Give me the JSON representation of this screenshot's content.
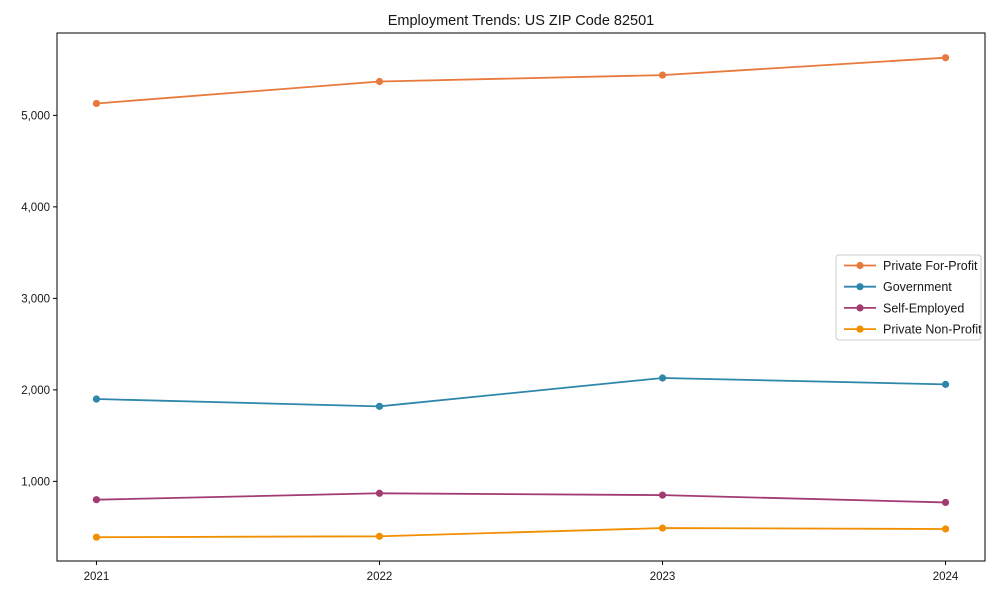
{
  "chart_data": {
    "type": "line",
    "title": "Employment Trends: US ZIP Code 82501",
    "categories": [
      "2021",
      "2022",
      "2023",
      "2024"
    ],
    "series": [
      {
        "name": "Private For-Profit",
        "color": "#E8793D",
        "values": [
          5130,
          5370,
          5440,
          5630
        ]
      },
      {
        "name": "Government",
        "color": "#2E86AB",
        "values": [
          1900,
          1820,
          2130,
          2060
        ]
      },
      {
        "name": "Self-Employed",
        "color": "#A23B72",
        "values": [
          800,
          870,
          850,
          770
        ]
      },
      {
        "name": "Private Non-Profit",
        "color": "#F18F01",
        "values": [
          390,
          400,
          490,
          480
        ]
      }
    ],
    "yticks": [
      1000,
      2000,
      3000,
      4000,
      5000
    ],
    "ytick_labels": [
      "1,000",
      "2,000",
      "3,000",
      "4,000",
      "5,000"
    ],
    "ylim": [
      130,
      5900
    ],
    "grid": false,
    "legend_position": "center-right",
    "legend_border_color": "#cccccc",
    "marker": "circle",
    "axis_color": "#000000"
  }
}
